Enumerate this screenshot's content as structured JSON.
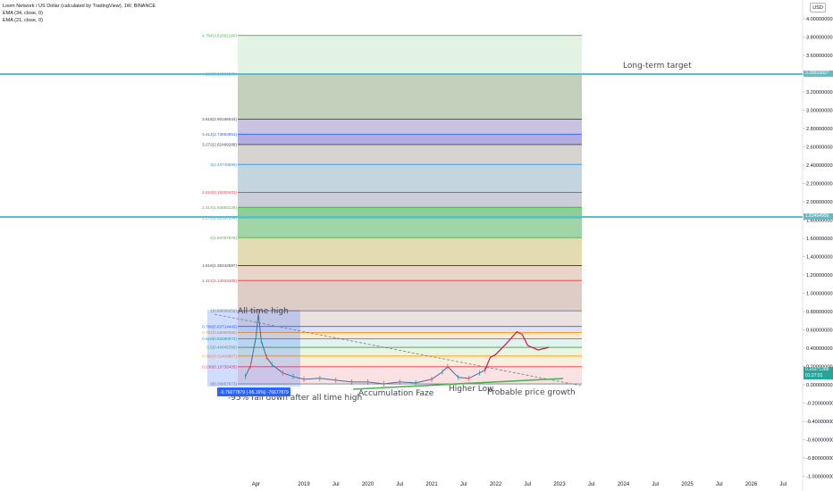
{
  "header": {
    "title": "Loom Network / US Dollar (calculated by TradingView), 1W, BINANCE",
    "indicator_1": "EMA (34, close, 0)",
    "indicator_2": "EMA (21, close, 0)"
  },
  "currency_badge": "USD",
  "price_axis": {
    "ticks": [
      "4.00000000",
      "3.80000000",
      "3.60000000",
      "3.40000000",
      "3.20000000",
      "3.00000000",
      "2.80000000",
      "2.60000000",
      "2.40000000",
      "2.20000000",
      "2.00000000",
      "1.80000000",
      "1.60000000",
      "1.40000000",
      "1.20000000",
      "1.00000000",
      "0.80000000",
      "0.60000000",
      "0.40000000",
      "0.20000000",
      "0.00000000",
      "-0.20000000",
      "-0.40000000",
      "-0.60000000",
      "-0.80000000",
      "-1.00000000"
    ],
    "tick_values": [
      4.0,
      3.8,
      3.6,
      3.4,
      3.2,
      3.0,
      2.8,
      2.6,
      2.4,
      2.2,
      2.0,
      1.8,
      1.6,
      1.4,
      1.2,
      1.0,
      0.8,
      0.6,
      0.4,
      0.2,
      0.0,
      -0.2,
      -0.4,
      -0.6,
      -0.8,
      -1.0
    ]
  },
  "time_axis": {
    "labels": [
      "Apr",
      "2019",
      "Jul",
      "2020",
      "Jul",
      "2021",
      "Jul",
      "2022",
      "Jul",
      "2023",
      "Jul",
      "2024",
      "Jul",
      "2025",
      "Jul",
      "2026",
      "Jul"
    ]
  },
  "price_badges": {
    "target_1": {
      "text": "3.39519027",
      "value": 3.39519027,
      "color": "#5fbcc9"
    },
    "target_2": {
      "text": "1.83454956",
      "value": 1.83454956,
      "color": "#5fbcc9"
    },
    "current": {
      "text": "0.16371289",
      "time": "01:27:01",
      "value": 0.16371289,
      "color": "#26a69a"
    }
  },
  "fib_levels": [
    {
      "ratio": 4.764,
      "price": 3.8180218,
      "label": "4.764(3.81802180)",
      "color": "#4caf50"
    },
    {
      "ratio": 4.236,
      "price": 3.39500389,
      "label": "4.236(3.39500389)",
      "color": "#26a69a"
    },
    {
      "ratio": 3.618,
      "price": 2.90166044,
      "label": "3.618(2.90166044)",
      "color": "#434651"
    },
    {
      "ratio": 3.414,
      "price": 2.73853853,
      "label": "3.414(2.73853853)",
      "color": "#2962ff"
    },
    {
      "ratio": 3.272,
      "price": 2.62499288,
      "label": "3.272(2.62499288)",
      "color": "#434651"
    },
    {
      "ratio": 3,
      "price": 2.40749699,
      "label": "3(2.40749699)",
      "color": "#2196f3"
    },
    {
      "ratio": 2.618,
      "price": 2.10203431,
      "label": "2.618(2.10203431)",
      "color": "#f23645"
    },
    {
      "ratio": 2.414,
      "price": 1.93893129,
      "label": "2.414(1.93893129)",
      "color": "#4caf50"
    },
    {
      "ratio": 2.272,
      "price": 1.82537564,
      "label": "2.272(1.82537564)",
      "color": "#26a69a"
    },
    {
      "ratio": 2,
      "price": 1.60787976,
      "label": "2(1.60787976)",
      "color": "#4caf50"
    },
    {
      "ratio": 1.618,
      "price": 1.30242597,
      "label": "1.618(1.30242597)",
      "color": "#434651"
    },
    {
      "ratio": 1.414,
      "price": 1.13933405,
      "label": "1.414(1.13933405)",
      "color": "#f23645"
    },
    {
      "ratio": 1,
      "price": 0.80836252,
      "label": "1(0.80836252)",
      "color": "#787b86"
    },
    {
      "ratio": 0.786,
      "price": 0.63714443,
      "label": "0.786(0.63714443)",
      "color": "#2962ff"
    },
    {
      "ratio": 0.702,
      "price": 0.56999586,
      "label": "0.702(0.56999586)",
      "color": "#ff9800"
    },
    {
      "ratio": 0.618,
      "price": 0.50280874,
      "label": "0.618(0.50280874)",
      "color": "#26a69a"
    },
    {
      "ratio": 0.5,
      "price": 0.4084539,
      "label": "0.5(0.40845390)",
      "color": "#4caf50"
    },
    {
      "ratio": 0.382,
      "price": 0.31409907,
      "label": "0.382(0.31409907)",
      "color": "#ff9800"
    },
    {
      "ratio": 0.236,
      "price": 0.19735405,
      "label": "0.236(0.19735405)",
      "color": "#f23645"
    },
    {
      "ratio": 0,
      "price": 0.00867673,
      "label": "0(0.00867673)",
      "color": "#787b86"
    }
  ],
  "fib_bands": [
    {
      "top": 3.8180218,
      "bottom": 3.39500389,
      "color": "#4caf50",
      "opacity": 0.16
    },
    {
      "top": 3.39500389,
      "bottom": 2.90166044,
      "color": "#7a9a6a",
      "opacity": 0.45
    },
    {
      "top": 2.90166044,
      "bottom": 2.73853853,
      "color": "#9c8fc9",
      "opacity": 0.55
    },
    {
      "top": 2.73853853,
      "bottom": 2.62499288,
      "color": "#8077c9",
      "opacity": 0.6
    },
    {
      "top": 2.62499288,
      "bottom": 2.40749699,
      "color": "#b6b0a8",
      "opacity": 0.55
    },
    {
      "top": 2.40749699,
      "bottom": 2.10203431,
      "color": "#9cb9cc",
      "opacity": 0.6
    },
    {
      "top": 2.10203431,
      "bottom": 1.93893129,
      "color": "#a8adc0",
      "opacity": 0.6
    },
    {
      "top": 1.93893129,
      "bottom": 1.82537564,
      "color": "#5cb86a",
      "opacity": 0.7
    },
    {
      "top": 1.82537564,
      "bottom": 1.60787976,
      "color": "#6fbf78",
      "opacity": 0.65
    },
    {
      "top": 1.60787976,
      "bottom": 1.30242597,
      "color": "#d4c98a",
      "opacity": 0.65
    },
    {
      "top": 1.30242597,
      "bottom": 1.13933405,
      "color": "#d8b9a2",
      "opacity": 0.6
    },
    {
      "top": 1.13933405,
      "bottom": 0.80836252,
      "color": "#c8aca0",
      "opacity": 0.6
    },
    {
      "top": 0.80836252,
      "bottom": 0.63714443,
      "color": "#d1bfb8",
      "opacity": 0.45
    },
    {
      "top": 0.63714443,
      "bottom": 0.56999586,
      "color": "#c3c7e9",
      "opacity": 0.5
    },
    {
      "top": 0.56999586,
      "bottom": 0.50280874,
      "color": "#f3dcbd",
      "opacity": 0.6
    },
    {
      "top": 0.50280874,
      "bottom": 0.4084539,
      "color": "#cdeae6",
      "opacity": 0.6
    },
    {
      "top": 0.4084539,
      "bottom": 0.31409907,
      "color": "#d9eecd",
      "opacity": 0.6
    },
    {
      "top": 0.31409907,
      "bottom": 0.19735405,
      "color": "#f7e4c7",
      "opacity": 0.6
    },
    {
      "top": 0.19735405,
      "bottom": 0.00867673,
      "color": "#f7cdd1",
      "opacity": 0.6
    }
  ],
  "annotations": {
    "long_term_target": "Long-term target",
    "all_time_high": "All time high",
    "fall_down": "-95% fall down after all time high",
    "accumulation": "Accumulation Faze",
    "higher_low": "Higher Low",
    "probable_growth": "Probable price growth",
    "measure_label": "-0.76677879 (-95.16%) -76677879"
  },
  "chart_data": {
    "type": "line",
    "title": "Loom Network / US Dollar (calculated by TradingView), 1W, BINANCE",
    "xlabel": "",
    "ylabel": "",
    "ylim": [
      -1.0,
      4.0
    ],
    "x_axis_labels": [
      "Apr",
      "2019",
      "Jul",
      "2020",
      "Jul",
      "2021",
      "Jul",
      "2022",
      "Jul",
      "2023",
      "Jul",
      "2024",
      "Jul",
      "2025",
      "Jul",
      "2026",
      "Jul"
    ],
    "series": [
      {
        "x": [
          "2018-02",
          "2018-03",
          "2018-04",
          "2018-04-15",
          "2018-05",
          "2018-06",
          "2018-07",
          "2018-09",
          "2018-11",
          "2019-01",
          "2019-04",
          "2019-07",
          "2019-10",
          "2020-01",
          "2020-04",
          "2020-07",
          "2020-10",
          "2021-01",
          "2021-03",
          "2021-04",
          "2021-06",
          "2021-08",
          "2021-10",
          "2021-11"
        ],
        "y": [
          0.09,
          0.21,
          0.52,
          0.78,
          0.48,
          0.3,
          0.22,
          0.13,
          0.09,
          0.06,
          0.07,
          0.05,
          0.03,
          0.03,
          0.01,
          0.03,
          0.02,
          0.06,
          0.14,
          0.2,
          0.08,
          0.07,
          0.13,
          0.16
        ]
      },
      {
        "x": [
          "2021-12",
          "2022-01",
          "2022-03",
          "2022-05",
          "2022-06",
          "2022-07",
          "2022-09",
          "2022-11"
        ],
        "y": [
          0.3,
          0.33,
          0.45,
          0.58,
          0.55,
          0.43,
          0.38,
          0.41
        ]
      }
    ],
    "fib_extension_range": [
      0.00867673,
      0.80836252
    ],
    "grid": false,
    "legend": "top-left"
  }
}
